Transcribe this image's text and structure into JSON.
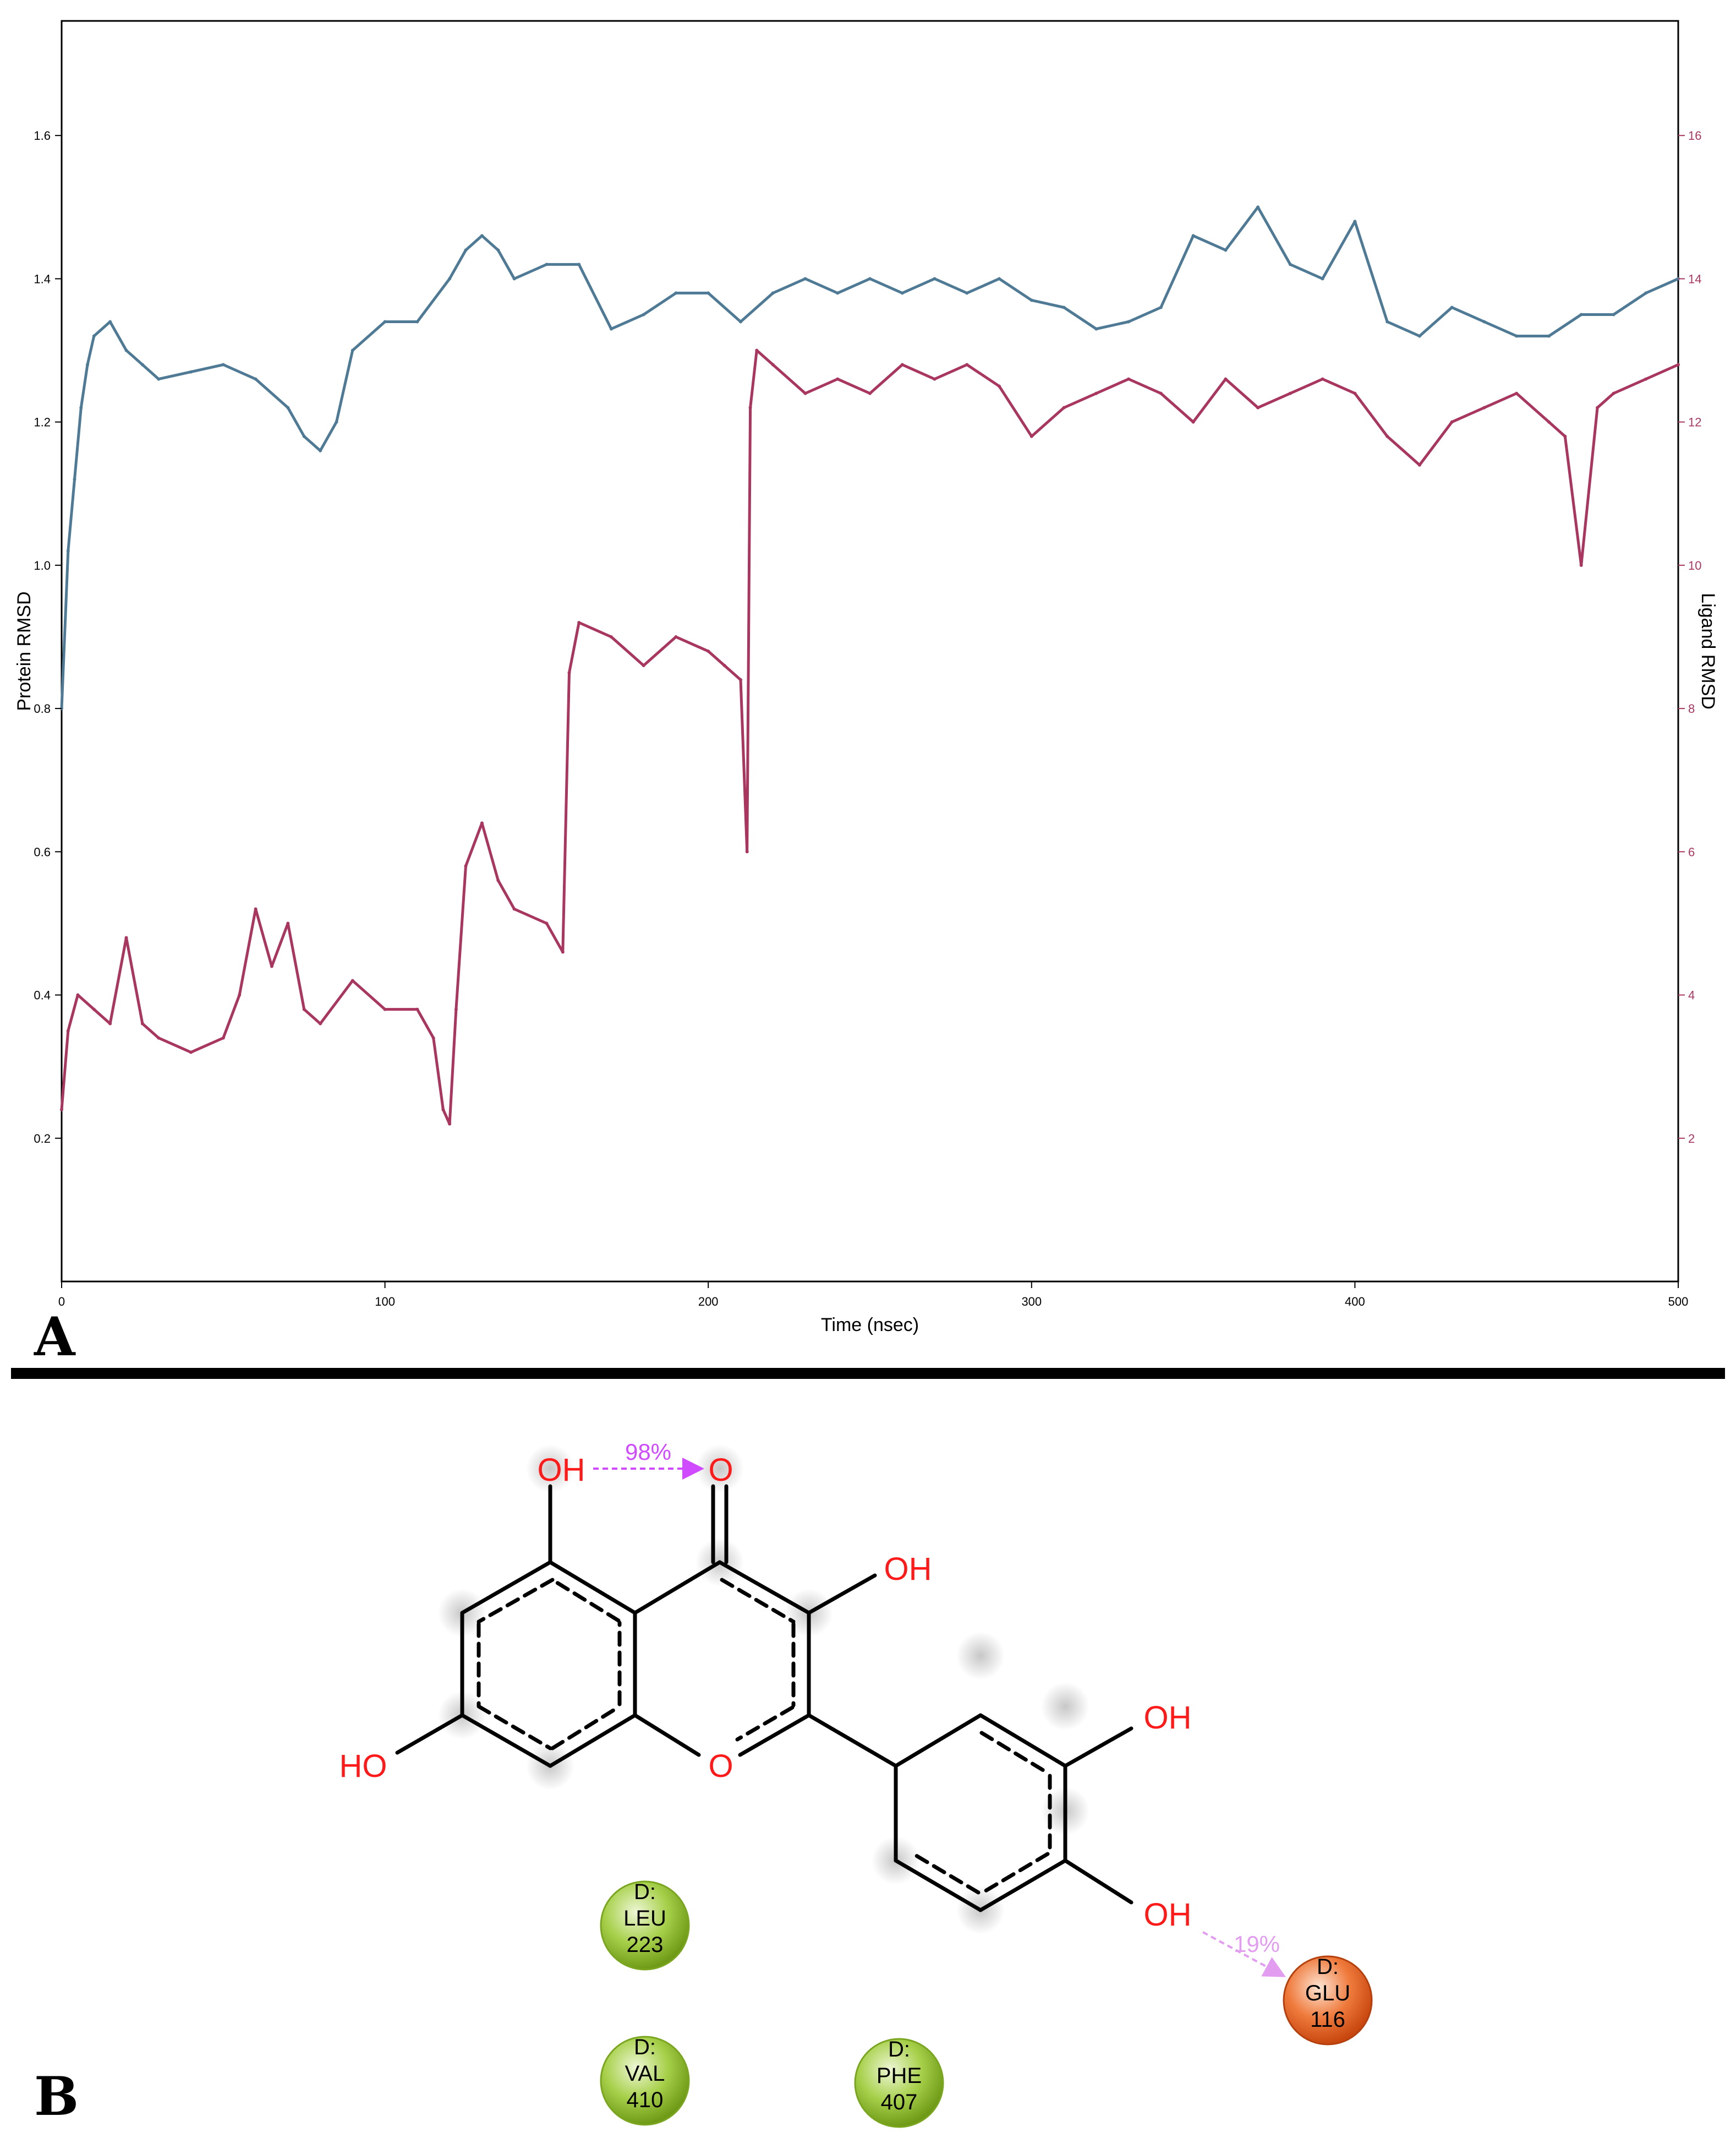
{
  "panel_a": {
    "label": "A"
  },
  "panel_b": {
    "label": "B"
  },
  "chart_data": {
    "type": "line",
    "xlabel": "Time (nsec)",
    "ylabel_left": "Protein RMSD",
    "ylabel_right": "Ligand RMSD",
    "xlim": [
      0,
      500
    ],
    "ylim_left": [
      0.0,
      1.76
    ],
    "ylim_right": [
      0.0,
      17.6
    ],
    "x_ticks": [
      "0",
      "100",
      "200",
      "300",
      "400",
      "500"
    ],
    "y_left_ticks": [
      "0.2",
      "0.4",
      "0.6",
      "0.8",
      "1.0",
      "1.2",
      "1.4",
      "1.6"
    ],
    "y_right_ticks": [
      "2",
      "4",
      "6",
      "8",
      "10",
      "12",
      "14",
      "16"
    ],
    "grid": false,
    "legend": "none",
    "series": [
      {
        "axis": "left",
        "color": "#4f7a95",
        "x": [
          0,
          2,
          4,
          6,
          8,
          10,
          15,
          20,
          25,
          30,
          40,
          50,
          60,
          70,
          75,
          80,
          85,
          90,
          100,
          110,
          120,
          125,
          130,
          135,
          140,
          150,
          160,
          170,
          180,
          190,
          200,
          210,
          220,
          230,
          240,
          250,
          260,
          270,
          280,
          290,
          300,
          310,
          320,
          330,
          340,
          350,
          360,
          370,
          380,
          390,
          400,
          410,
          420,
          430,
          440,
          450,
          460,
          470,
          480,
          490,
          500
        ],
        "y": [
          0.8,
          1.02,
          1.12,
          1.22,
          1.28,
          1.32,
          1.34,
          1.3,
          1.28,
          1.26,
          1.27,
          1.28,
          1.26,
          1.22,
          1.18,
          1.16,
          1.2,
          1.3,
          1.34,
          1.34,
          1.4,
          1.44,
          1.46,
          1.44,
          1.4,
          1.42,
          1.42,
          1.33,
          1.35,
          1.38,
          1.38,
          1.34,
          1.38,
          1.4,
          1.38,
          1.4,
          1.38,
          1.4,
          1.38,
          1.4,
          1.37,
          1.36,
          1.33,
          1.34,
          1.36,
          1.46,
          1.44,
          1.5,
          1.42,
          1.4,
          1.48,
          1.34,
          1.32,
          1.36,
          1.34,
          1.32,
          1.32,
          1.35,
          1.35,
          1.38,
          1.4
        ]
      },
      {
        "axis": "right",
        "color": "#a8365f",
        "x": [
          0,
          2,
          5,
          10,
          15,
          20,
          25,
          30,
          40,
          50,
          55,
          60,
          65,
          70,
          75,
          80,
          90,
          100,
          110,
          115,
          118,
          120,
          122,
          125,
          130,
          135,
          140,
          150,
          155,
          157,
          160,
          170,
          180,
          190,
          200,
          205,
          210,
          212,
          213,
          215,
          220,
          230,
          240,
          250,
          260,
          270,
          280,
          290,
          300,
          310,
          320,
          330,
          340,
          350,
          360,
          370,
          380,
          390,
          400,
          410,
          420,
          430,
          440,
          450,
          460,
          465,
          470,
          475,
          480,
          490,
          500
        ],
        "y": [
          2.4,
          3.5,
          4.0,
          3.8,
          3.6,
          4.8,
          3.6,
          3.4,
          3.2,
          3.4,
          4.0,
          5.2,
          4.4,
          5.0,
          3.8,
          3.6,
          4.2,
          3.8,
          3.8,
          3.4,
          2.4,
          2.2,
          3.8,
          5.8,
          6.4,
          5.6,
          5.2,
          5.0,
          4.6,
          8.5,
          9.2,
          9.0,
          8.6,
          9.0,
          8.8,
          8.6,
          8.4,
          6.0,
          12.2,
          13.0,
          12.8,
          12.4,
          12.6,
          12.4,
          12.8,
          12.6,
          12.8,
          12.5,
          11.8,
          12.2,
          12.4,
          12.6,
          12.4,
          12.0,
          12.6,
          12.2,
          12.4,
          12.6,
          12.4,
          11.8,
          11.4,
          12.0,
          12.2,
          12.4,
          12.0,
          11.8,
          10.0,
          12.2,
          12.4,
          12.6,
          12.8
        ]
      }
    ]
  },
  "ligand_interaction": {
    "atom_labels": {
      "oh_5": "OH",
      "o_carbonyl": "O",
      "oh_3": "OH",
      "ho_7": "HO",
      "o_ring": "O",
      "oh_3p": "OH",
      "oh_4p": "OH"
    },
    "hbond_intramolecular": {
      "percent": "98%",
      "color": "#d04aff"
    },
    "hbond_glu": {
      "percent": "19%",
      "color": "#e29cf0"
    },
    "residues": [
      {
        "chain": "D:",
        "name": "LEU",
        "number": "223",
        "kind": "hydrophobic",
        "color": "#8bbf2a"
      },
      {
        "chain": "D:",
        "name": "VAL",
        "number": "410",
        "kind": "hydrophobic",
        "color": "#8bbf2a"
      },
      {
        "chain": "D:",
        "name": "PHE",
        "number": "407",
        "kind": "hydrophobic",
        "color": "#8bbf2a"
      },
      {
        "chain": "D:",
        "name": "GLU",
        "number": "116",
        "kind": "negative",
        "color": "#e8581a"
      }
    ]
  }
}
